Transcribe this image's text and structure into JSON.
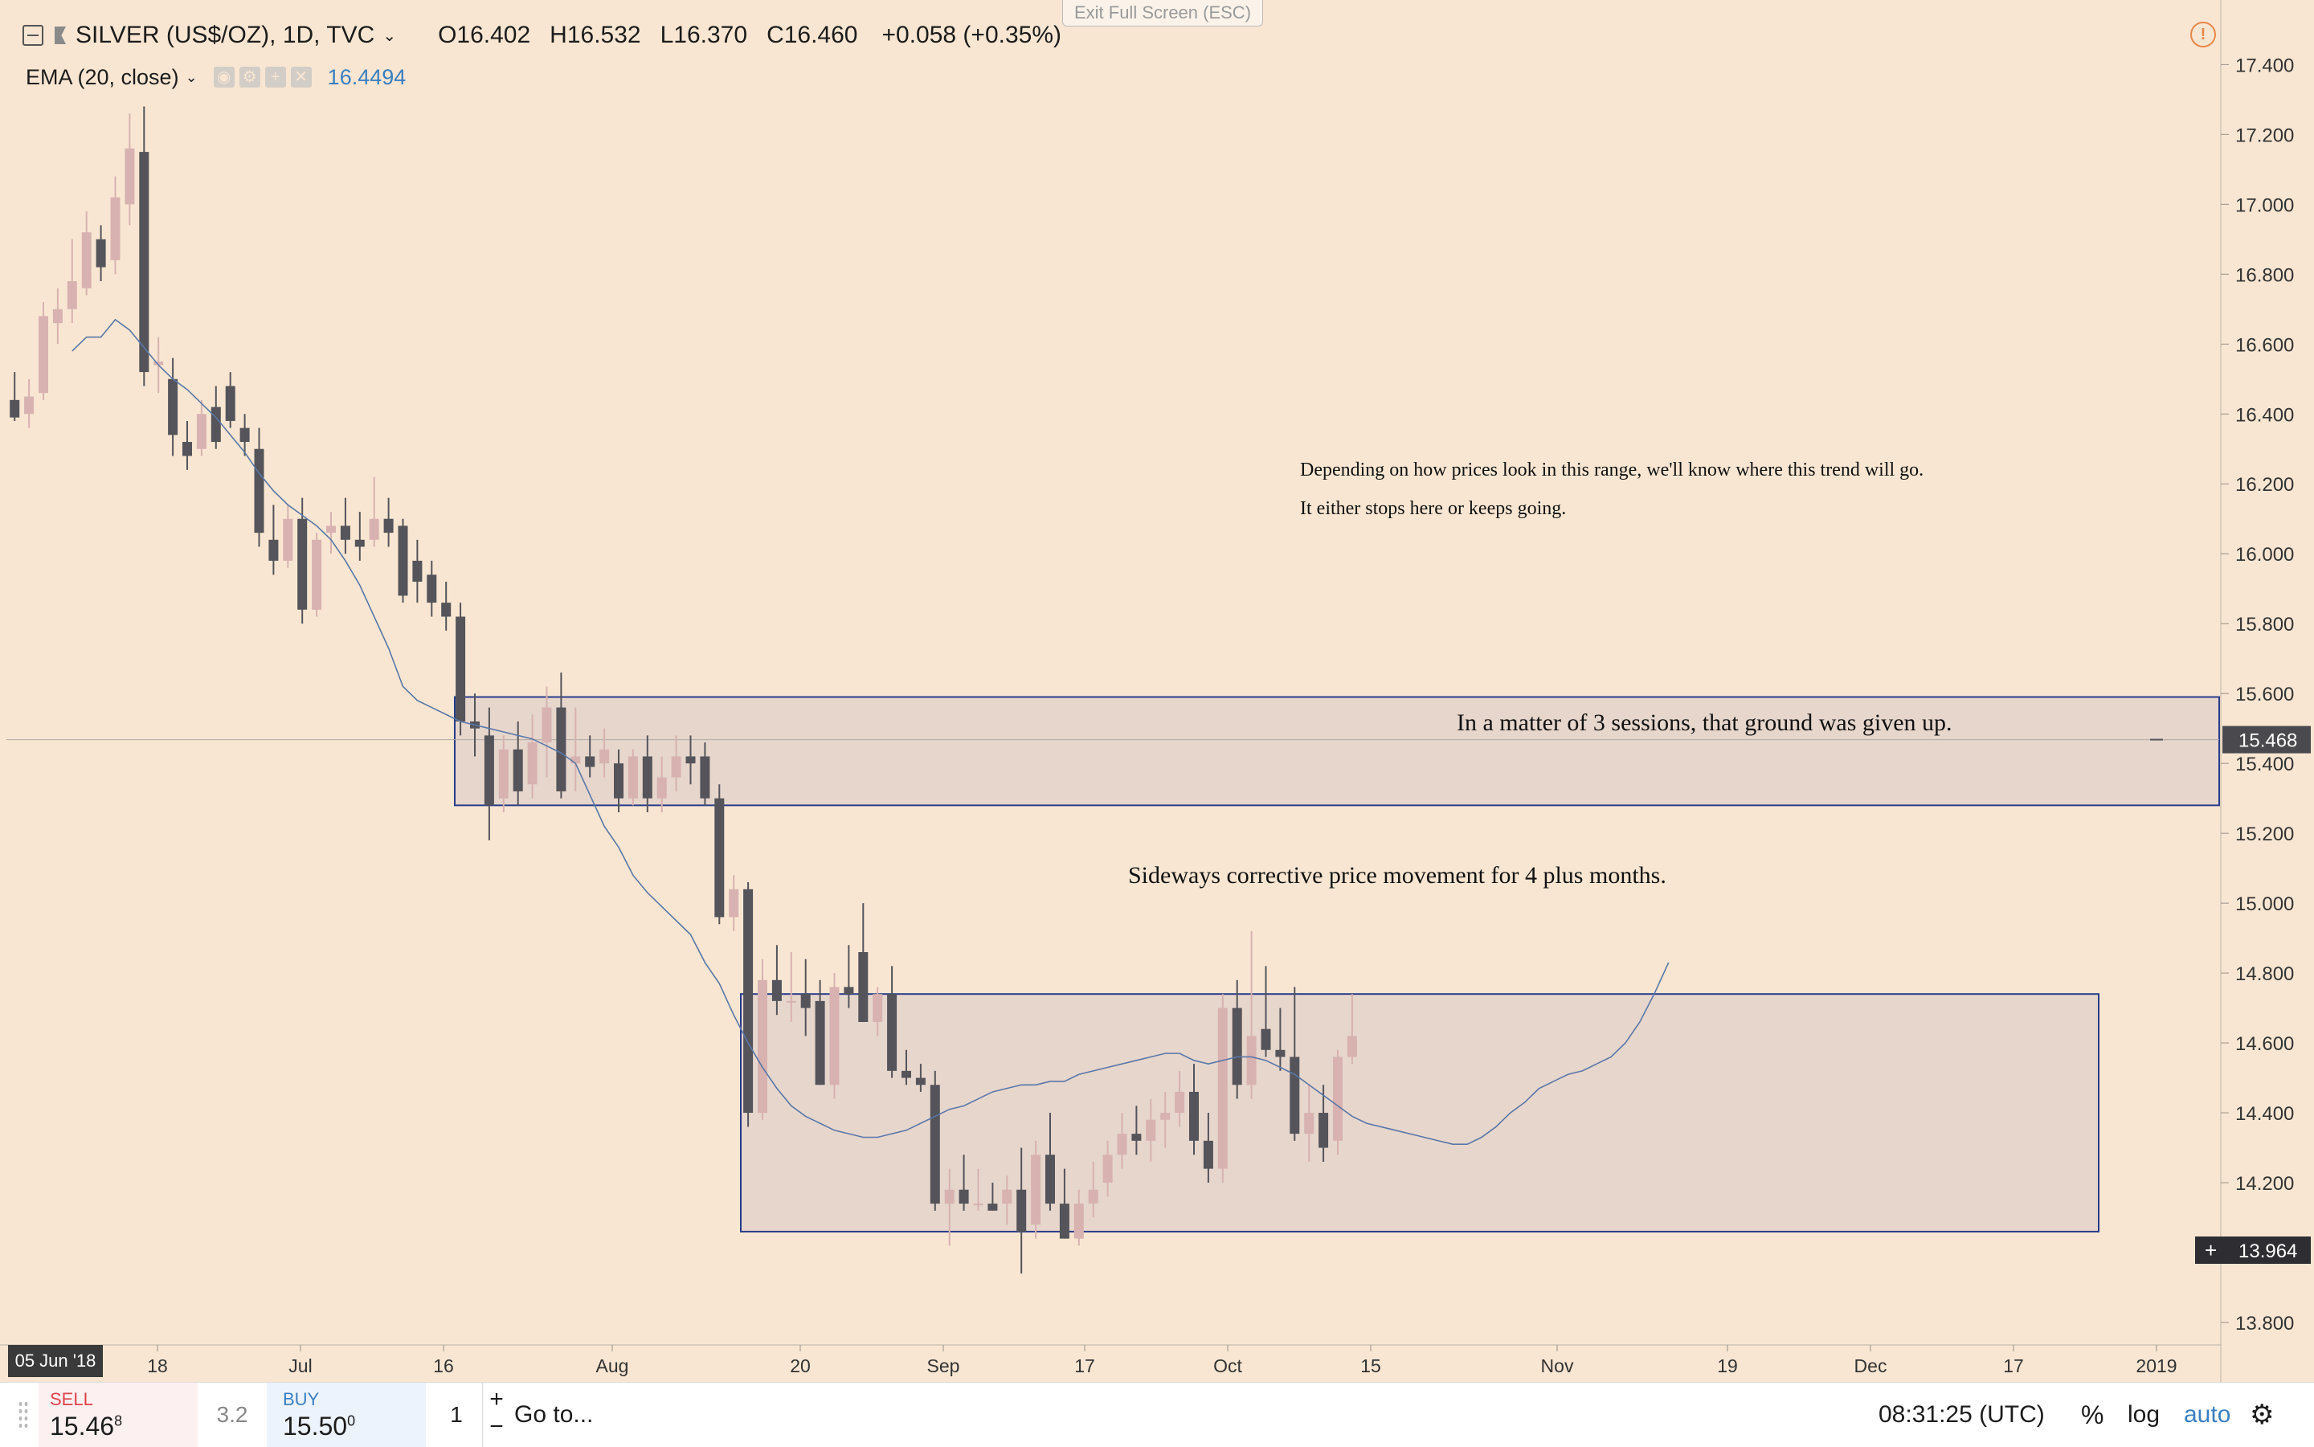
{
  "toolbar": {
    "exit_fullscreen": "Exit Full Screen (ESC)",
    "symbol": "SILVER (US$/OZ), 1D, TVC",
    "open": "O16.402",
    "high": "H16.532",
    "low": "L16.370",
    "close": "C16.460",
    "change": "+0.058 (+0.35%)"
  },
  "indicator": {
    "name": "EMA (20, close)",
    "value": "16.4494",
    "color": "#3a7fc1"
  },
  "chart_data": {
    "type": "candlestick",
    "price_axis": {
      "ticks": [
        "17.400",
        "17.200",
        "17.000",
        "16.800",
        "16.600",
        "16.400",
        "16.200",
        "16.000",
        "15.800",
        "15.600",
        "15.400",
        "15.200",
        "15.000",
        "14.800",
        "14.600",
        "14.400",
        "14.200",
        "14.000",
        "13.800"
      ],
      "range": [
        13.74,
        17.47
      ]
    },
    "time_axis": {
      "ticks": [
        "18",
        "Jul",
        "16",
        "Aug",
        "20",
        "Sep",
        "17",
        "Oct",
        "15",
        "Nov",
        "19",
        "Dec",
        "17",
        "2019"
      ],
      "start_date_label": "05 Jun '18"
    },
    "colors": {
      "up": "#d8b2b0",
      "down": "#54545a",
      "ema": "#5a77a8",
      "box": "#2a3c8a"
    },
    "ema_values": [
      16.58,
      16.62,
      16.62,
      16.67,
      16.64,
      16.59,
      16.54,
      16.5,
      16.47,
      16.43,
      16.39,
      16.34,
      16.29,
      16.23,
      16.18,
      16.14,
      16.11,
      16.08,
      16.04,
      15.98,
      15.91,
      15.82,
      15.73,
      15.62,
      15.58,
      15.56,
      15.54,
      15.52,
      15.51,
      15.5,
      15.49,
      15.48,
      15.47,
      15.45,
      15.43,
      15.4,
      15.31,
      15.22,
      15.16,
      15.08,
      15.03,
      14.99,
      14.95,
      14.91,
      14.83,
      14.77,
      14.68,
      14.6,
      14.53,
      14.47,
      14.42,
      14.39,
      14.37,
      14.35,
      14.34,
      14.33,
      14.33,
      14.34,
      14.35,
      14.37,
      14.39,
      14.41,
      14.42,
      14.44,
      14.46,
      14.47,
      14.48,
      14.48,
      14.49,
      14.49,
      14.51,
      14.52,
      14.53,
      14.54,
      14.55,
      14.56,
      14.57,
      14.57,
      14.55,
      14.54,
      14.55,
      14.56,
      14.56,
      14.55,
      14.53,
      14.51,
      14.48,
      14.45,
      14.42,
      14.39,
      14.37,
      14.36,
      14.35,
      14.34,
      14.33,
      14.32,
      14.31,
      14.31,
      14.33,
      14.36,
      14.4,
      14.43,
      14.47,
      14.49,
      14.51,
      14.52,
      14.54,
      14.56,
      14.6,
      14.66,
      14.74,
      14.83
    ],
    "candles": [
      {
        "o": 16.44,
        "h": 16.52,
        "l": 16.38,
        "c": 16.39
      },
      {
        "o": 16.4,
        "h": 16.5,
        "l": 16.36,
        "c": 16.45
      },
      {
        "o": 16.46,
        "h": 16.72,
        "l": 16.44,
        "c": 16.68
      },
      {
        "o": 16.66,
        "h": 16.76,
        "l": 16.6,
        "c": 16.7
      },
      {
        "o": 16.7,
        "h": 16.9,
        "l": 16.66,
        "c": 16.78
      },
      {
        "o": 16.76,
        "h": 16.98,
        "l": 16.74,
        "c": 16.92
      },
      {
        "o": 16.9,
        "h": 16.94,
        "l": 16.78,
        "c": 16.82
      },
      {
        "o": 16.84,
        "h": 17.08,
        "l": 16.8,
        "c": 17.02
      },
      {
        "o": 17.0,
        "h": 17.26,
        "l": 16.94,
        "c": 17.16
      },
      {
        "o": 17.15,
        "h": 17.28,
        "l": 16.48,
        "c": 16.52
      },
      {
        "o": 16.54,
        "h": 16.62,
        "l": 16.46,
        "c": 16.55
      },
      {
        "o": 16.5,
        "h": 16.56,
        "l": 16.28,
        "c": 16.34
      },
      {
        "o": 16.32,
        "h": 16.38,
        "l": 16.24,
        "c": 16.28
      },
      {
        "o": 16.3,
        "h": 16.44,
        "l": 16.28,
        "c": 16.4
      },
      {
        "o": 16.42,
        "h": 16.48,
        "l": 16.3,
        "c": 16.32
      },
      {
        "o": 16.48,
        "h": 16.52,
        "l": 16.36,
        "c": 16.38
      },
      {
        "o": 16.36,
        "h": 16.4,
        "l": 16.28,
        "c": 16.32
      },
      {
        "o": 16.3,
        "h": 16.36,
        "l": 16.02,
        "c": 16.06
      },
      {
        "o": 16.04,
        "h": 16.14,
        "l": 15.94,
        "c": 15.98
      },
      {
        "o": 15.98,
        "h": 16.14,
        "l": 15.96,
        "c": 16.1
      },
      {
        "o": 16.1,
        "h": 16.16,
        "l": 15.8,
        "c": 15.84
      },
      {
        "o": 15.84,
        "h": 16.06,
        "l": 15.82,
        "c": 16.04
      },
      {
        "o": 16.06,
        "h": 16.12,
        "l": 16.0,
        "c": 16.08
      },
      {
        "o": 16.08,
        "h": 16.16,
        "l": 16.0,
        "c": 16.04
      },
      {
        "o": 16.04,
        "h": 16.12,
        "l": 15.98,
        "c": 16.02
      },
      {
        "o": 16.04,
        "h": 16.22,
        "l": 16.02,
        "c": 16.1
      },
      {
        "o": 16.1,
        "h": 16.16,
        "l": 16.02,
        "c": 16.06
      },
      {
        "o": 16.08,
        "h": 16.1,
        "l": 15.86,
        "c": 15.88
      },
      {
        "o": 15.98,
        "h": 16.04,
        "l": 15.86,
        "c": 15.92
      },
      {
        "o": 15.94,
        "h": 15.98,
        "l": 15.82,
        "c": 15.86
      },
      {
        "o": 15.86,
        "h": 15.92,
        "l": 15.78,
        "c": 15.82
      },
      {
        "o": 15.82,
        "h": 15.86,
        "l": 15.48,
        "c": 15.52
      },
      {
        "o": 15.52,
        "h": 15.6,
        "l": 15.42,
        "c": 15.5
      },
      {
        "o": 15.48,
        "h": 15.56,
        "l": 15.18,
        "c": 15.28
      },
      {
        "o": 15.3,
        "h": 15.48,
        "l": 15.26,
        "c": 15.44
      },
      {
        "o": 15.44,
        "h": 15.52,
        "l": 15.28,
        "c": 15.32
      },
      {
        "o": 15.34,
        "h": 15.54,
        "l": 15.3,
        "c": 15.46
      },
      {
        "o": 15.46,
        "h": 15.62,
        "l": 15.36,
        "c": 15.56
      },
      {
        "o": 15.56,
        "h": 15.66,
        "l": 15.3,
        "c": 15.32
      },
      {
        "o": 15.4,
        "h": 15.56,
        "l": 15.32,
        "c": 15.42
      },
      {
        "o": 15.42,
        "h": 15.48,
        "l": 15.36,
        "c": 15.39
      },
      {
        "o": 15.4,
        "h": 15.5,
        "l": 15.36,
        "c": 15.44
      },
      {
        "o": 15.4,
        "h": 15.44,
        "l": 15.26,
        "c": 15.3
      },
      {
        "o": 15.3,
        "h": 15.44,
        "l": 15.28,
        "c": 15.42
      },
      {
        "o": 15.42,
        "h": 15.48,
        "l": 15.26,
        "c": 15.3
      },
      {
        "o": 15.3,
        "h": 15.42,
        "l": 15.26,
        "c": 15.36
      },
      {
        "o": 15.36,
        "h": 15.48,
        "l": 15.32,
        "c": 15.42
      },
      {
        "o": 15.42,
        "h": 15.48,
        "l": 15.34,
        "c": 15.4
      },
      {
        "o": 15.42,
        "h": 15.46,
        "l": 15.28,
        "c": 15.3
      },
      {
        "o": 15.3,
        "h": 15.34,
        "l": 14.94,
        "c": 14.96
      },
      {
        "o": 14.96,
        "h": 15.08,
        "l": 14.92,
        "c": 15.04
      },
      {
        "o": 15.04,
        "h": 15.06,
        "l": 14.36,
        "c": 14.4
      },
      {
        "o": 14.4,
        "h": 14.84,
        "l": 14.38,
        "c": 14.78
      },
      {
        "o": 14.78,
        "h": 14.88,
        "l": 14.68,
        "c": 14.72
      },
      {
        "o": 14.72,
        "h": 14.86,
        "l": 14.66,
        "c": 14.72
      },
      {
        "o": 14.74,
        "h": 14.84,
        "l": 14.62,
        "c": 14.7
      },
      {
        "o": 14.72,
        "h": 14.78,
        "l": 14.48,
        "c": 14.48
      },
      {
        "o": 14.48,
        "h": 14.8,
        "l": 14.44,
        "c": 14.76
      },
      {
        "o": 14.76,
        "h": 14.88,
        "l": 14.7,
        "c": 14.74
      },
      {
        "o": 14.86,
        "h": 15.0,
        "l": 14.66,
        "c": 14.66
      },
      {
        "o": 14.66,
        "h": 14.76,
        "l": 14.62,
        "c": 14.74
      },
      {
        "o": 14.74,
        "h": 14.82,
        "l": 14.5,
        "c": 14.52
      },
      {
        "o": 14.52,
        "h": 14.58,
        "l": 14.48,
        "c": 14.5
      },
      {
        "o": 14.5,
        "h": 14.54,
        "l": 14.46,
        "c": 14.48
      },
      {
        "o": 14.48,
        "h": 14.52,
        "l": 14.12,
        "c": 14.14
      },
      {
        "o": 14.14,
        "h": 14.24,
        "l": 14.02,
        "c": 14.18
      },
      {
        "o": 14.18,
        "h": 14.28,
        "l": 14.12,
        "c": 14.14
      },
      {
        "o": 14.14,
        "h": 14.24,
        "l": 14.12,
        "c": 14.14
      },
      {
        "o": 14.14,
        "h": 14.2,
        "l": 14.12,
        "c": 14.12
      },
      {
        "o": 14.14,
        "h": 14.22,
        "l": 14.08,
        "c": 14.18
      },
      {
        "o": 14.18,
        "h": 14.3,
        "l": 13.94,
        "c": 14.06
      },
      {
        "o": 14.08,
        "h": 14.32,
        "l": 14.04,
        "c": 14.28
      },
      {
        "o": 14.28,
        "h": 14.4,
        "l": 14.12,
        "c": 14.14
      },
      {
        "o": 14.14,
        "h": 14.24,
        "l": 14.04,
        "c": 14.04
      },
      {
        "o": 14.04,
        "h": 14.18,
        "l": 14.02,
        "c": 14.14
      },
      {
        "o": 14.14,
        "h": 14.26,
        "l": 14.1,
        "c": 14.18
      },
      {
        "o": 14.2,
        "h": 14.32,
        "l": 14.16,
        "c": 14.28
      },
      {
        "o": 14.28,
        "h": 14.4,
        "l": 14.24,
        "c": 14.34
      },
      {
        "o": 14.34,
        "h": 14.42,
        "l": 14.28,
        "c": 14.32
      },
      {
        "o": 14.32,
        "h": 14.44,
        "l": 14.26,
        "c": 14.38
      },
      {
        "o": 14.38,
        "h": 14.46,
        "l": 14.3,
        "c": 14.4
      },
      {
        "o": 14.4,
        "h": 14.52,
        "l": 14.36,
        "c": 14.46
      },
      {
        "o": 14.46,
        "h": 14.54,
        "l": 14.28,
        "c": 14.32
      },
      {
        "o": 14.32,
        "h": 14.4,
        "l": 14.2,
        "c": 14.24
      },
      {
        "o": 14.24,
        "h": 14.74,
        "l": 14.2,
        "c": 14.7
      },
      {
        "o": 14.7,
        "h": 14.78,
        "l": 14.44,
        "c": 14.48
      },
      {
        "o": 14.48,
        "h": 14.92,
        "l": 14.44,
        "c": 14.62
      },
      {
        "o": 14.64,
        "h": 14.82,
        "l": 14.56,
        "c": 14.58
      },
      {
        "o": 14.58,
        "h": 14.7,
        "l": 14.52,
        "c": 14.56
      },
      {
        "o": 14.56,
        "h": 14.76,
        "l": 14.32,
        "c": 14.34
      },
      {
        "o": 14.34,
        "h": 14.48,
        "l": 14.26,
        "c": 14.4
      },
      {
        "o": 14.4,
        "h": 14.48,
        "l": 14.26,
        "c": 14.3
      },
      {
        "o": 14.32,
        "h": 14.58,
        "l": 14.28,
        "c": 14.56
      },
      {
        "o": 14.56,
        "h": 14.74,
        "l": 14.54,
        "c": 14.62
      }
    ]
  },
  "drawings": {
    "upper_box": {
      "top": 15.59,
      "bottom": 15.28
    },
    "lower_box": {
      "top": 14.74,
      "bottom": 14.06
    },
    "current_price_line": 15.468
  },
  "annotations": {
    "note_line1": "Depending on how prices look in this range, we'll know where this trend will go.",
    "note_line2": "It either stops here or keeps going.",
    "upper_box_label": "In a matter of 3 sessions, that ground was given up.",
    "lower_box_label": "Sideways corrective price movement for 4 plus months."
  },
  "price_badges": {
    "current": "15.468",
    "crosshair": "13.964"
  },
  "bottom_bar": {
    "sell_label": "SELL",
    "sell_price": "15.46",
    "sell_price_sup": "8",
    "spread": "3.2",
    "buy_label": "BUY",
    "buy_price": "15.50",
    "buy_price_sup": "0",
    "quantity": "1",
    "plus": "+",
    "minus": "−",
    "goto": "Go to...",
    "clock": "08:31:25 (UTC)",
    "percent": "%",
    "log": "log",
    "auto": "auto"
  }
}
